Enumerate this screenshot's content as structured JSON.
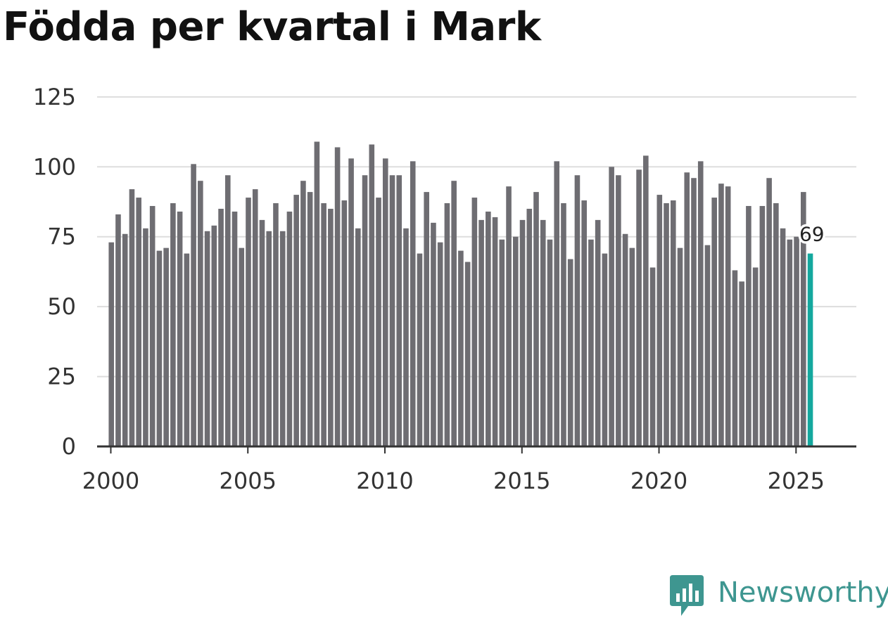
{
  "page_title": "Födda per kvartal i Mark",
  "brand": {
    "name": "Newsworthy",
    "icon": "newsworthy-logo-icon"
  },
  "colors": {
    "bar": "#6e6d72",
    "highlight": "#14a89e",
    "grid": "#dddddd",
    "axis": "#333333",
    "brand": "#3e9690"
  },
  "chart_data": {
    "type": "bar",
    "title": "Födda per kvartal i Mark",
    "xlabel": "",
    "ylabel": "",
    "x_start": 2000,
    "x_step": 0.25,
    "xlim": [
      1999.5,
      2027.2
    ],
    "ylim": [
      0,
      130
    ],
    "y_ticks": [
      0,
      25,
      50,
      75,
      100,
      125
    ],
    "x_ticks": [
      2000,
      2005,
      2010,
      2015,
      2020,
      2025
    ],
    "grid": true,
    "highlight_label": "69",
    "values": [
      73,
      83,
      76,
      92,
      89,
      78,
      86,
      70,
      71,
      87,
      84,
      69,
      101,
      95,
      77,
      79,
      85,
      97,
      84,
      71,
      89,
      92,
      81,
      77,
      87,
      77,
      84,
      90,
      95,
      91,
      109,
      87,
      85,
      107,
      88,
      103,
      78,
      97,
      108,
      89,
      103,
      97,
      97,
      78,
      102,
      69,
      91,
      80,
      73,
      87,
      95,
      70,
      66,
      89,
      81,
      84,
      82,
      74,
      93,
      75,
      81,
      85,
      91,
      81,
      74,
      102,
      87,
      67,
      97,
      88,
      74,
      81,
      69,
      100,
      97,
      76,
      71,
      99,
      104,
      64,
      90,
      87,
      88,
      71,
      98,
      96,
      102,
      72,
      89,
      94,
      93,
      63,
      59,
      86,
      64,
      86,
      96,
      87,
      78,
      74,
      75,
      91,
      69
    ]
  }
}
